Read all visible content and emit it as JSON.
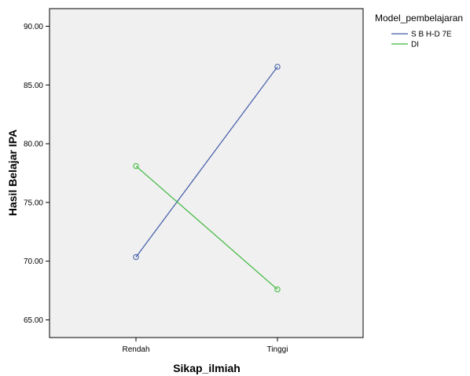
{
  "chart_data": {
    "type": "line",
    "categories": [
      "Rendah",
      "Tinggi"
    ],
    "series": [
      {
        "name": "S B H-D 7E",
        "values": [
          70.35,
          86.55
        ],
        "color": "#3f5aa8"
      },
      {
        "name": "DI",
        "values": [
          78.1,
          67.6
        ],
        "color": "#3cb83c"
      }
    ],
    "xlabel": "Sikap_ilmiah",
    "ylabel": "Hasil Belajar IPA",
    "ylim": [
      63.5,
      91.5
    ],
    "yticks": [
      65,
      70,
      75,
      80,
      85,
      90
    ],
    "ytick_labels": [
      "65.00",
      "70.00",
      "75.00",
      "80.00",
      "85.00",
      "90.00"
    ],
    "legend_title": "Model_pembelajaran",
    "legend_position": "top-right, outside plot",
    "marker": "open-circle",
    "grid": false,
    "plot_background": "#f0f0f0"
  }
}
